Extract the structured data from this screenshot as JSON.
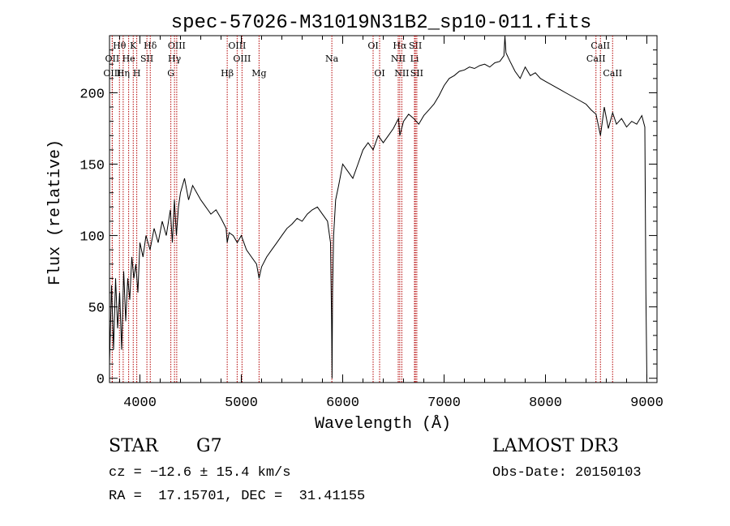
{
  "chart_data": {
    "type": "line",
    "title": "spec-57026-M31019N31B2_sp10-011.fits",
    "xlabel": "Wavelength (Å)",
    "ylabel": "Flux (relative)",
    "xlim": [
      3700,
      9100
    ],
    "ylim": [
      -3,
      240
    ],
    "x_ticks": [
      4000,
      5000,
      6000,
      7000,
      8000,
      9000
    ],
    "y_ticks": [
      0,
      50,
      100,
      150,
      200
    ],
    "grid": false,
    "series": [
      {
        "x": [
          3700,
          3720,
          3740,
          3760,
          3780,
          3800,
          3820,
          3840,
          3860,
          3880,
          3900,
          3920,
          3940,
          3960,
          3980,
          4000,
          4030,
          4060,
          4100,
          4140,
          4180,
          4220,
          4260,
          4300,
          4320,
          4340,
          4360,
          4380,
          4400,
          4440,
          4480,
          4520,
          4560,
          4600,
          4650,
          4700,
          4750,
          4800,
          4850,
          4861,
          4880,
          4920,
          4960,
          5000,
          5050,
          5100,
          5150,
          5175,
          5200,
          5250,
          5300,
          5350,
          5400,
          5450,
          5500,
          5550,
          5600,
          5650,
          5700,
          5750,
          5800,
          5850,
          5880,
          5890,
          5895,
          5900,
          5910,
          5930,
          5960,
          6000,
          6050,
          6100,
          6150,
          6200,
          6250,
          6300,
          6350,
          6400,
          6450,
          6500,
          6550,
          6563,
          6600,
          6650,
          6700,
          6750,
          6800,
          6850,
          6900,
          6950,
          7000,
          7050,
          7100,
          7150,
          7200,
          7250,
          7300,
          7350,
          7400,
          7450,
          7500,
          7550,
          7590,
          7600,
          7610,
          7650,
          7700,
          7750,
          7800,
          7850,
          7900,
          7950,
          8000,
          8050,
          8100,
          8150,
          8200,
          8250,
          8300,
          8350,
          8400,
          8450,
          8498,
          8542,
          8580,
          8620,
          8662,
          8700,
          8750,
          8800,
          8850,
          8900,
          8950,
          8980,
          8990,
          9000
        ],
        "values": [
          10,
          65,
          20,
          70,
          35,
          60,
          20,
          75,
          40,
          70,
          55,
          85,
          70,
          80,
          60,
          95,
          85,
          100,
          90,
          105,
          95,
          110,
          100,
          118,
          95,
          125,
          100,
          120,
          130,
          140,
          125,
          135,
          130,
          125,
          120,
          115,
          118,
          112,
          105,
          95,
          102,
          100,
          95,
          100,
          90,
          85,
          80,
          70,
          78,
          85,
          90,
          95,
          100,
          105,
          108,
          112,
          110,
          115,
          118,
          120,
          115,
          110,
          95,
          40,
          0,
          60,
          100,
          125,
          135,
          150,
          145,
          140,
          150,
          160,
          165,
          160,
          170,
          165,
          170,
          175,
          182,
          170,
          180,
          185,
          182,
          178,
          184,
          188,
          192,
          198,
          205,
          210,
          212,
          215,
          216,
          218,
          217,
          219,
          220,
          218,
          221,
          222,
          226,
          240,
          228,
          222,
          215,
          210,
          218,
          212,
          214,
          210,
          208,
          206,
          204,
          202,
          200,
          198,
          196,
          194,
          192,
          188,
          185,
          170,
          190,
          175,
          186,
          178,
          182,
          176,
          180,
          178,
          184,
          176,
          60,
          0
        ]
      }
    ],
    "line_markers": [
      {
        "label": "Hθ",
        "x": 3798,
        "row": 1
      },
      {
        "label": "OII",
        "x": 3727,
        "row": 2
      },
      {
        "label": "OIII",
        "x": 3727,
        "row": 3
      },
      {
        "label": "He",
        "x": 3889,
        "row": 2
      },
      {
        "label": "K",
        "x": 3934,
        "row": 1
      },
      {
        "label": "Hη",
        "x": 3835,
        "row": 3
      },
      {
        "label": "SII",
        "x": 4069,
        "row": 2
      },
      {
        "label": "H",
        "x": 3969,
        "row": 3
      },
      {
        "label": "Hδ",
        "x": 4102,
        "row": 1
      },
      {
        "label": "OIII",
        "x": 4363,
        "row": 1
      },
      {
        "label": "Hγ",
        "x": 4341,
        "row": 2
      },
      {
        "label": "G",
        "x": 4305,
        "row": 3
      },
      {
        "label": "Hβ",
        "x": 4861,
        "row": 3
      },
      {
        "label": "OIII",
        "x": 4959,
        "row": 1
      },
      {
        "label": "OIII",
        "x": 5007,
        "row": 2
      },
      {
        "label": "Mg",
        "x": 5175,
        "row": 3
      },
      {
        "label": "Na",
        "x": 5893,
        "row": 2
      },
      {
        "label": "OI",
        "x": 6300,
        "row": 1
      },
      {
        "label": "OI",
        "x": 6364,
        "row": 3
      },
      {
        "label": "Hα",
        "x": 6563,
        "row": 1
      },
      {
        "label": "SII",
        "x": 6717,
        "row": 1
      },
      {
        "label": "NII",
        "x": 6548,
        "row": 2
      },
      {
        "label": "Li",
        "x": 6708,
        "row": 2
      },
      {
        "label": "NII",
        "x": 6583,
        "row": 3
      },
      {
        "label": "SII",
        "x": 6731,
        "row": 3
      },
      {
        "label": "CaII",
        "x": 8542,
        "row": 1
      },
      {
        "label": "CaII",
        "x": 8498,
        "row": 2
      },
      {
        "label": "CaII",
        "x": 8662,
        "row": 3
      }
    ]
  },
  "footer": {
    "class_label": "STAR",
    "subclass": "G7",
    "survey": "LAMOST DR3",
    "redshift": "cz = −12.6 ± 15.4 km/s",
    "obs_date": "Obs-Date: 20150103",
    "coords": "RA =  17.15701, DEC =  31.41155"
  }
}
